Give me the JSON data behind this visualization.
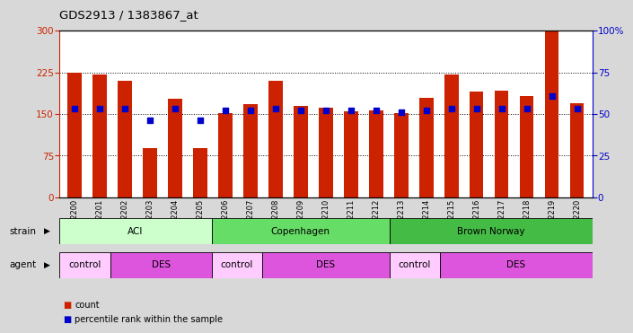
{
  "title": "GDS2913 / 1383867_at",
  "samples": [
    "GSM92200",
    "GSM92201",
    "GSM92202",
    "GSM92203",
    "GSM92204",
    "GSM92205",
    "GSM92206",
    "GSM92207",
    "GSM92208",
    "GSM92209",
    "GSM92210",
    "GSM92211",
    "GSM92212",
    "GSM92213",
    "GSM92214",
    "GSM92215",
    "GSM92216",
    "GSM92217",
    "GSM92218",
    "GSM92219",
    "GSM92220"
  ],
  "counts": [
    225,
    222,
    210,
    88,
    178,
    88,
    152,
    168,
    210,
    165,
    162,
    155,
    157,
    152,
    180,
    222,
    190,
    192,
    182,
    300,
    170
  ],
  "percentiles": [
    53,
    53,
    53,
    46,
    53,
    46,
    52,
    52,
    53,
    52,
    52,
    52,
    52,
    51,
    52,
    53,
    53,
    53,
    53,
    61,
    53
  ],
  "ylim_left": [
    0,
    300
  ],
  "ylim_right": [
    0,
    100
  ],
  "yticks_left": [
    0,
    75,
    150,
    225,
    300
  ],
  "yticks_right": [
    0,
    25,
    50,
    75,
    100
  ],
  "bar_color": "#cc2200",
  "dot_color": "#0000cc",
  "strain_groups": [
    {
      "label": "ACI",
      "start": 0,
      "end": 6,
      "color": "#ccffcc"
    },
    {
      "label": "Copenhagen",
      "start": 6,
      "end": 13,
      "color": "#66dd66"
    },
    {
      "label": "Brown Norway",
      "start": 13,
      "end": 21,
      "color": "#44bb44"
    }
  ],
  "agent_groups": [
    {
      "label": "control",
      "start": 0,
      "end": 2,
      "color": "#ffccff"
    },
    {
      "label": "DES",
      "start": 2,
      "end": 6,
      "color": "#dd55dd"
    },
    {
      "label": "control",
      "start": 6,
      "end": 8,
      "color": "#ffccff"
    },
    {
      "label": "DES",
      "start": 8,
      "end": 13,
      "color": "#dd55dd"
    },
    {
      "label": "control",
      "start": 13,
      "end": 15,
      "color": "#ffccff"
    },
    {
      "label": "DES",
      "start": 15,
      "end": 21,
      "color": "#dd55dd"
    }
  ],
  "outer_bg": "#d8d8d8",
  "plot_bg": "#ffffff",
  "tick_bg": "#c8c8c8"
}
